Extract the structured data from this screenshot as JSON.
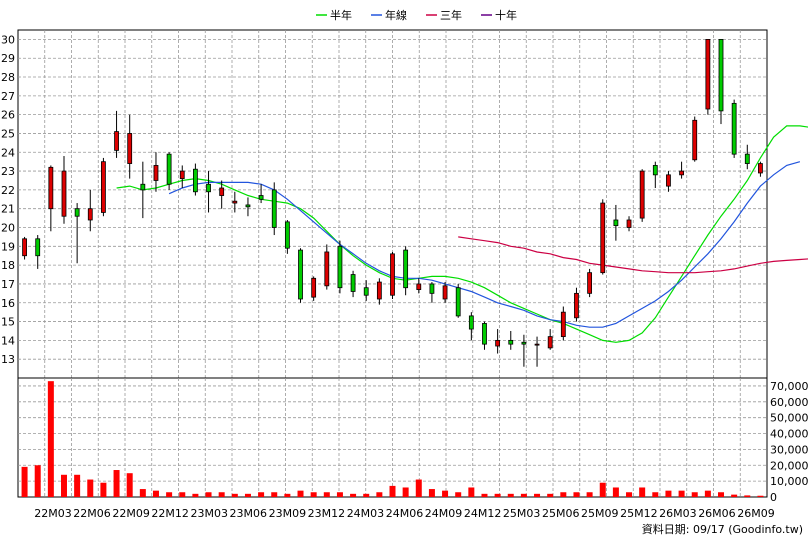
{
  "chart_data": {
    "type": "candlestick",
    "legend": [
      {
        "name": "半年",
        "color": "#00dd00"
      },
      {
        "name": "年線",
        "color": "#2255dd"
      },
      {
        "name": "三年",
        "color": "#cc0044"
      },
      {
        "name": "十年",
        "color": "#660088"
      }
    ],
    "price_axis": {
      "min": 12,
      "max": 30.5,
      "ticks": [
        13,
        14,
        15,
        16,
        17,
        18,
        19,
        20,
        21,
        22,
        23,
        24,
        25,
        26,
        27,
        28,
        29,
        30
      ]
    },
    "volume_axis": {
      "min": 0,
      "max": 75000,
      "ticks": [
        0,
        10000,
        20000,
        30000,
        40000,
        50000,
        60000,
        70000
      ],
      "tick_labels": [
        "0",
        "10,000",
        "20,000",
        "30,000",
        "40,000",
        "50,000",
        "60,000",
        "70,000"
      ]
    },
    "x_labels": [
      "22M03",
      "22M06",
      "22M09",
      "22M12",
      "23M03",
      "23M06",
      "23M09",
      "23M12",
      "24M03",
      "24M06",
      "24M09",
      "24M12",
      "25M03",
      "25M06",
      "25M09",
      "25M12",
      "26M03",
      "26M06",
      "26M09"
    ],
    "candles": [
      [
        18.5,
        19.4,
        19.5,
        18.3
      ],
      [
        19.4,
        18.5,
        19.6,
        17.8
      ],
      [
        21.0,
        23.2,
        23.3,
        19.8
      ],
      [
        20.6,
        23.0,
        23.8,
        20.2
      ],
      [
        21.0,
        20.6,
        21.3,
        18.1
      ],
      [
        20.4,
        21.0,
        22.0,
        19.8
      ],
      [
        20.8,
        23.5,
        23.7,
        20.6
      ],
      [
        24.1,
        25.1,
        26.2,
        23.7
      ],
      [
        23.4,
        25.0,
        26.0,
        22.6
      ],
      [
        22.3,
        22.0,
        23.5,
        20.5
      ],
      [
        22.5,
        23.3,
        24.0,
        21.9
      ],
      [
        23.9,
        22.3,
        24.0,
        22.0
      ],
      [
        22.6,
        23.0,
        23.3,
        22.1
      ],
      [
        23.1,
        21.9,
        23.4,
        21.7
      ],
      [
        22.3,
        21.9,
        23.0,
        20.8
      ],
      [
        21.7,
        22.1,
        22.5,
        21.0
      ],
      [
        21.3,
        21.4,
        21.9,
        20.8
      ],
      [
        21.2,
        21.1,
        21.6,
        20.6
      ],
      [
        21.7,
        21.5,
        22.3,
        21.3
      ],
      [
        22.0,
        20.0,
        22.4,
        19.6
      ],
      [
        20.3,
        18.9,
        20.4,
        18.6
      ],
      [
        18.8,
        16.2,
        18.9,
        16.0
      ],
      [
        16.3,
        17.3,
        17.4,
        16.1
      ],
      [
        16.9,
        18.7,
        19.1,
        16.7
      ],
      [
        19.0,
        16.8,
        19.3,
        16.5
      ],
      [
        17.5,
        16.6,
        17.7,
        16.3
      ],
      [
        16.8,
        16.4,
        17.2,
        16.1
      ],
      [
        16.2,
        17.1,
        17.3,
        15.9
      ],
      [
        16.4,
        18.6,
        18.7,
        16.2
      ],
      [
        18.8,
        16.8,
        19.0,
        16.4
      ],
      [
        16.7,
        17.0,
        17.3,
        16.5
      ],
      [
        17.0,
        16.5,
        17.1,
        16.0
      ],
      [
        16.2,
        16.9,
        17.1,
        16.0
      ],
      [
        16.8,
        15.3,
        17.0,
        15.2
      ],
      [
        15.3,
        14.6,
        15.5,
        14.0
      ],
      [
        14.9,
        13.8,
        15.0,
        13.5
      ],
      [
        13.7,
        14.0,
        14.6,
        13.3
      ],
      [
        14.0,
        13.8,
        14.5,
        13.5
      ],
      [
        13.9,
        13.8,
        14.3,
        12.6
      ],
      [
        13.8,
        13.8,
        14.2,
        12.6
      ],
      [
        13.6,
        14.2,
        14.6,
        13.5
      ],
      [
        14.2,
        15.5,
        15.8,
        14.0
      ],
      [
        15.2,
        16.5,
        16.8,
        15.0
      ],
      [
        16.5,
        17.6,
        17.8,
        16.3
      ],
      [
        17.6,
        21.3,
        21.5,
        17.5
      ],
      [
        20.4,
        20.1,
        21.2,
        19.3
      ],
      [
        20.0,
        20.4,
        20.6,
        19.8
      ],
      [
        20.5,
        23.0,
        23.1,
        20.3
      ],
      [
        23.3,
        22.8,
        23.5,
        22.1
      ],
      [
        22.2,
        22.8,
        23.0,
        21.9
      ],
      [
        22.8,
        23.0,
        23.5,
        22.6
      ],
      [
        23.6,
        25.7,
        25.9,
        23.5
      ],
      [
        26.3,
        30.0,
        30.0,
        26.0
      ],
      [
        30.0,
        26.2,
        30.0,
        25.5
      ],
      [
        26.6,
        23.9,
        26.8,
        23.7
      ],
      [
        23.9,
        23.4,
        24.4,
        23.1
      ],
      [
        22.9,
        23.4,
        23.5,
        22.7
      ]
    ],
    "volume": [
      19000,
      20000,
      73000,
      14000,
      14000,
      11000,
      9000,
      17000,
      15000,
      5000,
      4000,
      3000,
      3000,
      2000,
      3000,
      3000,
      2000,
      2000,
      3000,
      3000,
      2000,
      4000,
      3000,
      3000,
      3000,
      2000,
      2000,
      3000,
      7000,
      6000,
      11000,
      5000,
      4000,
      3000,
      6000,
      2000,
      2000,
      2000,
      2000,
      2000,
      2000,
      3000,
      3000,
      3000,
      9000,
      6000,
      3000,
      6000,
      3000,
      4000,
      4000,
      3000,
      4000,
      3000,
      1500,
      1000,
      800
    ],
    "ma_half": {
      "start": 7,
      "values": [
        22.1,
        22.2,
        22.0,
        22.1,
        22.3,
        22.5,
        22.6,
        22.5,
        22.3,
        22.0,
        21.7,
        21.5,
        21.4,
        21.3,
        21.0,
        20.5,
        19.8,
        19.1,
        18.5,
        18.0,
        17.6,
        17.3,
        17.2,
        17.3,
        17.4,
        17.4,
        17.3,
        17.1,
        16.8,
        16.4,
        16.0,
        15.7,
        15.4,
        15.1,
        14.9,
        14.6,
        14.3,
        14.0,
        13.9,
        14.0,
        14.4,
        15.2,
        16.3,
        17.4,
        18.5,
        19.6,
        20.6,
        21.5,
        22.5,
        23.7,
        24.8,
        25.4,
        25.4,
        25.3,
        25.1
      ]
    },
    "ma_year": {
      "start": 11,
      "values": [
        21.8,
        22.1,
        22.3,
        22.4,
        22.4,
        22.4,
        22.4,
        22.3,
        22.0,
        21.5,
        20.9,
        20.3,
        19.7,
        19.1,
        18.6,
        18.1,
        17.7,
        17.4,
        17.3,
        17.3,
        17.2,
        17.0,
        16.8,
        16.6,
        16.3,
        16.0,
        15.8,
        15.6,
        15.3,
        15.1,
        15.0,
        14.8,
        14.7,
        14.7,
        14.9,
        15.3,
        15.7,
        16.1,
        16.6,
        17.2,
        17.9,
        18.6,
        19.4,
        20.3,
        21.3,
        22.2,
        22.8,
        23.3,
        23.5
      ]
    },
    "ma_3y": {
      "start": 33,
      "values": [
        19.5,
        19.4,
        19.3,
        19.2,
        19.0,
        18.9,
        18.7,
        18.6,
        18.4,
        18.3,
        18.1,
        18.0,
        17.9,
        17.8,
        17.7,
        17.65,
        17.6,
        17.6,
        17.6,
        17.65,
        17.7,
        17.8,
        17.95,
        18.1,
        18.2,
        18.25,
        18.3,
        18.35,
        18.4,
        18.5
      ]
    }
  },
  "footer_text": "資料日期: 09/17  (Goodinfo.tw)"
}
